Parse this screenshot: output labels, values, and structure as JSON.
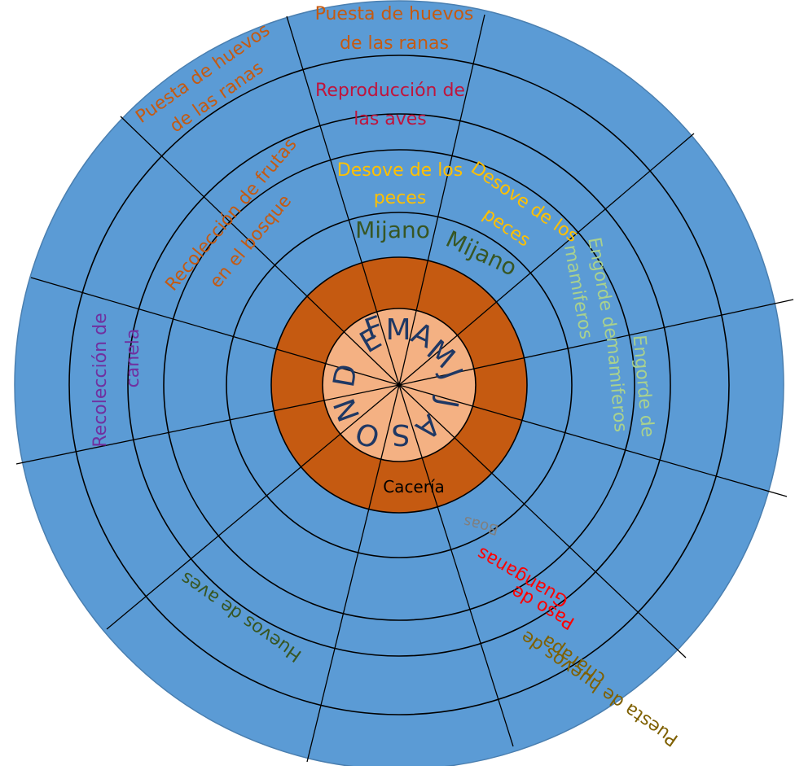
{
  "colors": {
    "outer_blue": "#5b9bd5",
    "ring_orange": "#c55a11",
    "center_peach": "#f4b183",
    "line": "#000000",
    "months_text": "#1f3864",
    "frogs_text": "#c55a11",
    "birds_text": "#c0143c",
    "fish_text": "#ffc000",
    "mijano_text": "#375623",
    "mammals_text": "#a9d18e",
    "cinnamon_text": "#7030a0",
    "hunting_text": "#000000",
    "boas_text": "#7f7f7f",
    "guanganas_text": "#ff0000",
    "eggs_text": "#375623",
    "charapa_text": "#7f6000"
  },
  "months": [
    "E",
    "F",
    "M",
    "A",
    "M",
    "J",
    "J",
    "A",
    "S",
    "O",
    "N",
    "D"
  ],
  "activities": {
    "frogs_top_l1": "Puesta de huevos",
    "frogs_top_l2": "de las ranas",
    "frogs_left_l1": "Puesta de huevos",
    "frogs_left_l2": "de las ranas",
    "birds_l1": "Reproducción de",
    "birds_l2": "las aves",
    "fish_a_l1": "Desove de los",
    "fish_a_l2": "peces",
    "fish_b_l1": "Desove de los",
    "fish_b_l2": "peces",
    "mijano_a": "Mijano",
    "mijano_b": "Mijano",
    "fruits_l1": "Recolección de frutas",
    "fruits_l2": "en  el bosque",
    "mammals_a_l1": "Engorde de",
    "mammals_a_l2": "mamiferos",
    "mammals_b_l1": "Engorde de",
    "mammals_b_l2": "mamiferos",
    "cinnamon_l1": "Recolección de",
    "cinnamon_l2": "canela",
    "hunting": "Cacería",
    "boas": "Boas",
    "guanganas_l1": "Paso de",
    "guanganas_l2": "Guanganas",
    "bird_eggs": "Huevos de aves",
    "charapa_l1": "Puesta de huevos de",
    "charapa_l2": "charapa"
  }
}
